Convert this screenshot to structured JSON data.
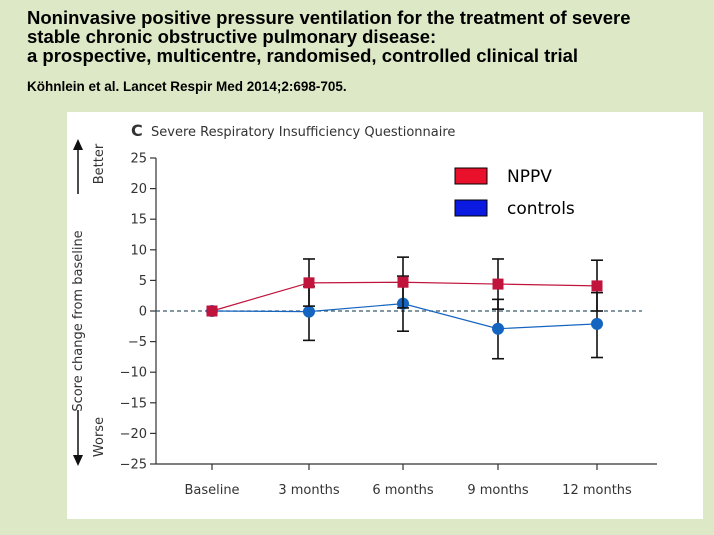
{
  "slide": {
    "title_lines": [
      "Noninvasive positive pressure ventilation for the treatment of severe",
      "stable chronic obstructive pulmonary disease:",
      "a prospective, multicentre, randomised, controlled clinical trial"
    ],
    "citation": "Köhnlein et al. Lancet Respir Med 2014;2:698-705."
  },
  "chart_data": {
    "type": "line",
    "panel_letter": "C",
    "title": "Severe Respiratory Insufficiency Questionnaire",
    "ylabel": "Score change from baseline",
    "ylabel_better": "Better",
    "ylabel_worse": "Worse",
    "categories": [
      "Baseline",
      "3 months",
      "6 months",
      "9 months",
      "12 months"
    ],
    "ylim": [
      -25,
      25
    ],
    "yticks": [
      25,
      20,
      15,
      10,
      5,
      0,
      -5,
      -10,
      -15,
      -20,
      -25
    ],
    "ytick_labels": [
      "25",
      "20",
      "15",
      "10",
      "5",
      "0",
      "−5",
      "−10",
      "−15",
      "−20",
      "−25"
    ],
    "reference_line": 0,
    "series": [
      {
        "name": "NPPV",
        "color": "#c0143c",
        "marker": "square",
        "values": [
          0,
          4.6,
          4.7,
          4.4,
          4.1
        ],
        "error_low": [
          null,
          0.8,
          0.5,
          0.3,
          0.0
        ],
        "error_high": [
          null,
          8.5,
          8.8,
          8.5,
          8.3
        ]
      },
      {
        "name": "controls",
        "color": "#1565c0",
        "marker": "circle",
        "values": [
          0,
          -0.1,
          1.2,
          -2.9,
          -2.1
        ],
        "error_low": [
          null,
          -4.8,
          -3.3,
          -7.8,
          -7.6
        ],
        "error_high": [
          null,
          4.0,
          5.7,
          1.9,
          3.0
        ]
      }
    ],
    "legend": [
      {
        "label": "NPPV",
        "color": "#e8102a"
      },
      {
        "label": "controls",
        "color": "#0a1ae0"
      }
    ]
  }
}
